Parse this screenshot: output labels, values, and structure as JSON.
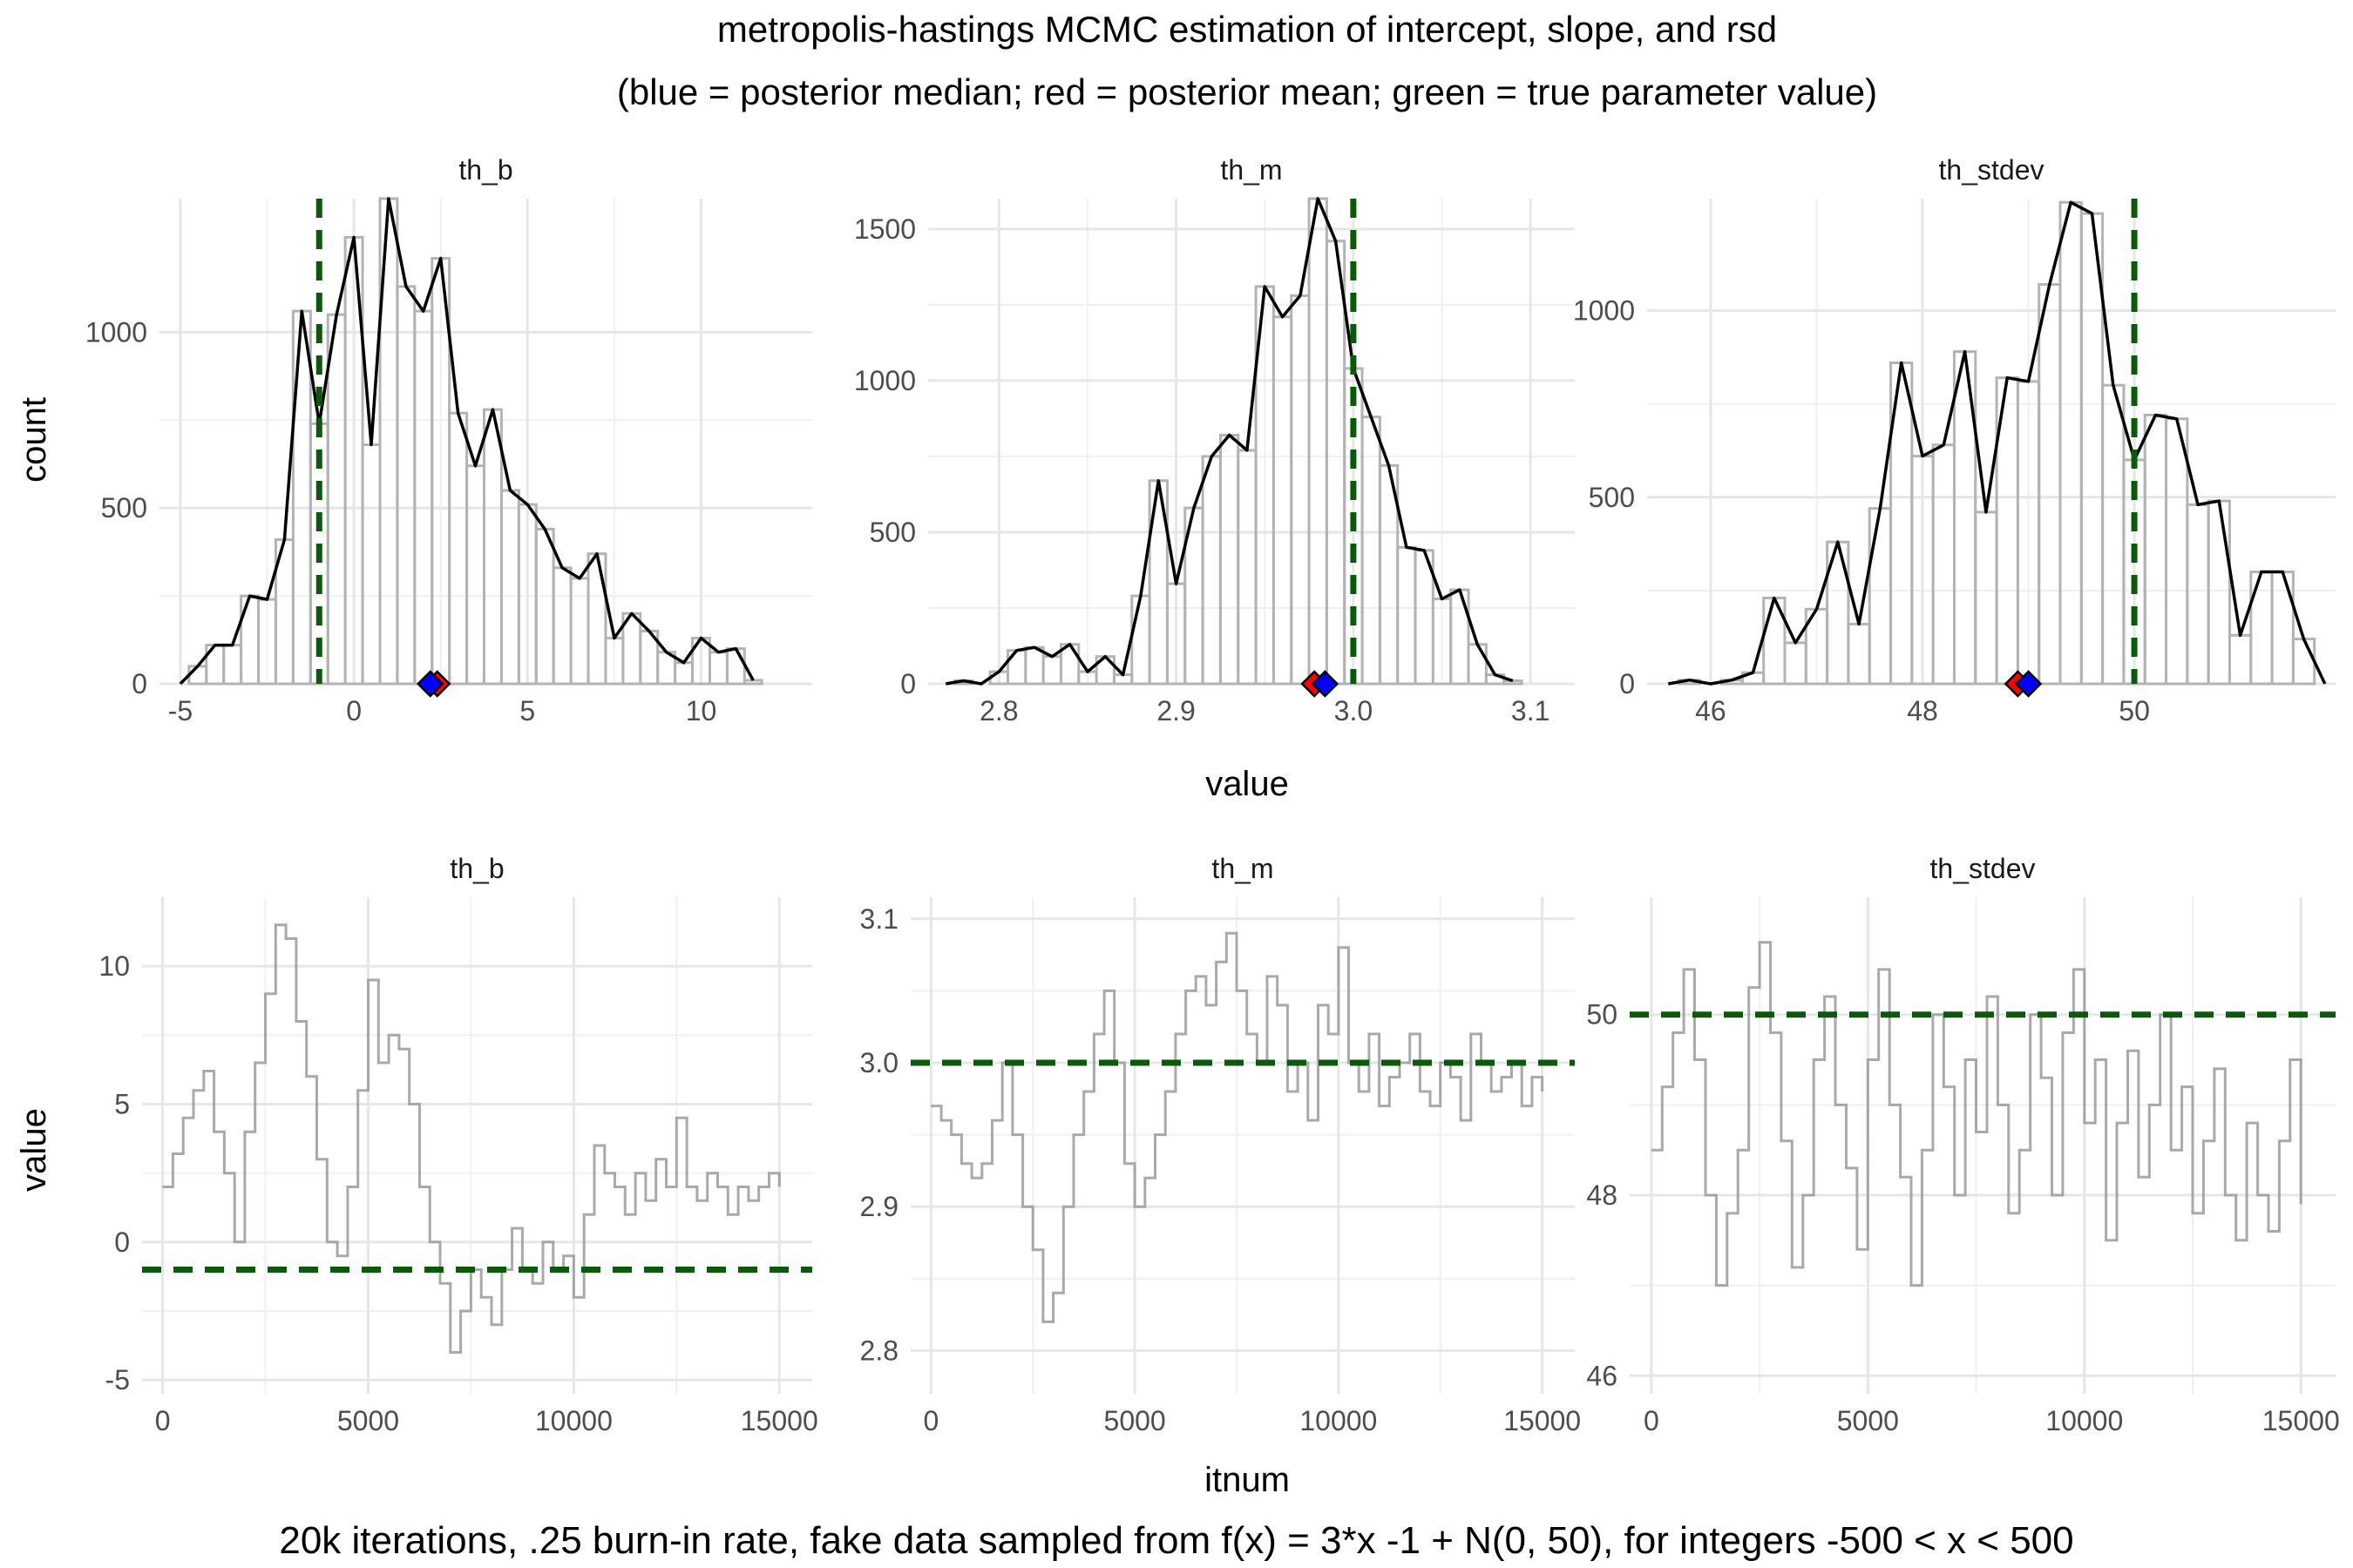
{
  "figure": {
    "title": "metropolis-hastings MCMC estimation of intercept, slope, and rsd",
    "subtitle": "(blue = posterior median; red = posterior mean; green = true parameter value)",
    "caption": "20k iterations, .25 burn-in rate, fake data sampled from f(x) = 3*x -1 + N(0, 50), for integers -500 < x < 500",
    "hist_xlabel": "value",
    "hist_ylabel": "count",
    "trace_xlabel": "itnum",
    "trace_ylabel": "value"
  },
  "colors": {
    "median": "#0000ff",
    "mean": "#ff0000",
    "true_value": "#0b5a0b",
    "bars": "#b3b3b3",
    "density": "#000000",
    "trace": "#9a9a9a",
    "grid": "#e6e6e6"
  },
  "chart_data": [
    {
      "type": "bar",
      "panel": "histogram",
      "title": "th_b",
      "xlim": [
        -5.6,
        13.2
      ],
      "ylim": [
        0,
        1380
      ],
      "xticks": [
        -5,
        0,
        5,
        10
      ],
      "xtick_labels": [
        "-5",
        "0",
        "5",
        "10"
      ],
      "yticks": [
        0,
        500,
        1000
      ],
      "ytick_labels": [
        "0",
        "500",
        "1000"
      ],
      "bin_width": 0.5,
      "bin_start": -5.0,
      "values": [
        0,
        50,
        110,
        110,
        250,
        240,
        410,
        1060,
        740,
        1050,
        1270,
        680,
        1380,
        1130,
        1060,
        1210,
        770,
        620,
        780,
        550,
        510,
        440,
        330,
        300,
        370,
        130,
        200,
        150,
        90,
        60,
        130,
        90,
        100,
        10
      ],
      "true_value": -1,
      "posterior_mean": 2.4,
      "posterior_median": 2.2
    },
    {
      "type": "bar",
      "panel": "histogram",
      "title": "th_m",
      "xlim": [
        2.76,
        3.125
      ],
      "ylim": [
        0,
        1600
      ],
      "xticks": [
        2.8,
        2.9,
        3.0,
        3.1
      ],
      "xtick_labels": [
        "2.8",
        "2.9",
        "3.0",
        "3.1"
      ],
      "yticks": [
        0,
        500,
        1000,
        1500
      ],
      "ytick_labels": [
        "0",
        "500",
        "1000",
        "1500"
      ],
      "bin_width": 0.01,
      "bin_start": 2.77,
      "values": [
        0,
        10,
        0,
        40,
        110,
        120,
        90,
        130,
        40,
        90,
        30,
        290,
        670,
        330,
        580,
        750,
        820,
        770,
        1310,
        1210,
        1280,
        1600,
        1460,
        1040,
        880,
        720,
        450,
        440,
        280,
        310,
        130,
        30,
        10
      ],
      "true_value": 3.0,
      "posterior_mean": 2.978,
      "posterior_median": 2.984
    },
    {
      "type": "bar",
      "panel": "histogram",
      "title": "th_stdev",
      "xlim": [
        45.4,
        51.9
      ],
      "ylim": [
        0,
        1300
      ],
      "xticks": [
        46,
        48,
        50
      ],
      "xtick_labels": [
        "46",
        "48",
        "50"
      ],
      "yticks": [
        0,
        500,
        1000
      ],
      "ytick_labels": [
        "0",
        "500",
        "1000"
      ],
      "bin_width": 0.2,
      "bin_start": 45.6,
      "values": [
        0,
        10,
        0,
        10,
        30,
        230,
        110,
        200,
        380,
        160,
        470,
        860,
        610,
        640,
        890,
        460,
        820,
        810,
        1070,
        1290,
        1260,
        800,
        600,
        720,
        710,
        480,
        490,
        130,
        300,
        300,
        120,
        0
      ],
      "true_value": 50,
      "posterior_mean": 48.9,
      "posterior_median": 49.0
    },
    {
      "type": "line",
      "panel": "trace",
      "title": "th_b",
      "xlim": [
        -500,
        15800
      ],
      "ylim": [
        -5.5,
        12.5
      ],
      "xticks": [
        0,
        5000,
        10000,
        15000
      ],
      "xtick_labels": [
        "0",
        "5000",
        "10000",
        "15000"
      ],
      "yticks": [
        -5,
        0,
        5,
        10
      ],
      "ytick_labels": [
        "-5",
        "0",
        "5",
        "10"
      ],
      "x": [
        0,
        250,
        500,
        750,
        1000,
        1250,
        1500,
        1750,
        2000,
        2250,
        2500,
        2750,
        3000,
        3250,
        3500,
        3750,
        4000,
        4250,
        4500,
        4750,
        5000,
        5250,
        5500,
        5750,
        6000,
        6250,
        6500,
        6750,
        7000,
        7250,
        7500,
        7750,
        8000,
        8250,
        8500,
        8750,
        9000,
        9250,
        9500,
        9750,
        10000,
        10250,
        10500,
        10750,
        11000,
        11250,
        11500,
        11750,
        12000,
        12250,
        12500,
        12750,
        13000,
        13250,
        13500,
        13750,
        14000,
        14250,
        14500,
        14750,
        15000
      ],
      "y": [
        2.0,
        3.2,
        4.5,
        5.5,
        6.2,
        4.0,
        2.5,
        0.0,
        4.0,
        6.5,
        9.0,
        11.5,
        11.0,
        8.0,
        6.0,
        3.0,
        0.0,
        -0.5,
        2.0,
        5.5,
        9.5,
        6.5,
        7.5,
        7.0,
        5.0,
        2.0,
        0.0,
        -1.5,
        -4.0,
        -2.5,
        -1.0,
        -2.0,
        -3.0,
        -1.0,
        0.5,
        -1.0,
        -1.5,
        0.0,
        -1.0,
        -0.5,
        -2.0,
        1.0,
        3.5,
        2.5,
        2.0,
        1.0,
        2.5,
        1.5,
        3.0,
        2.0,
        4.5,
        2.0,
        1.5,
        2.5,
        2.0,
        1.0,
        2.0,
        1.5,
        2.0,
        2.5,
        2.0
      ],
      "true_value": -1
    },
    {
      "type": "line",
      "panel": "trace",
      "title": "th_m",
      "xlim": [
        -500,
        15800
      ],
      "ylim": [
        2.77,
        3.115
      ],
      "xticks": [
        0,
        5000,
        10000,
        15000
      ],
      "xtick_labels": [
        "0",
        "5000",
        "10000",
        "15000"
      ],
      "yticks": [
        2.8,
        2.9,
        3.0,
        3.1
      ],
      "ytick_labels": [
        "2.8",
        "2.9",
        "3.0",
        "3.1"
      ],
      "x": [
        0,
        250,
        500,
        750,
        1000,
        1250,
        1500,
        1750,
        2000,
        2250,
        2500,
        2750,
        3000,
        3250,
        3500,
        3750,
        4000,
        4250,
        4500,
        4750,
        5000,
        5250,
        5500,
        5750,
        6000,
        6250,
        6500,
        6750,
        7000,
        7250,
        7500,
        7750,
        8000,
        8250,
        8500,
        8750,
        9000,
        9250,
        9500,
        9750,
        10000,
        10250,
        10500,
        10750,
        11000,
        11250,
        11500,
        11750,
        12000,
        12250,
        12500,
        12750,
        13000,
        13250,
        13500,
        13750,
        14000,
        14250,
        14500,
        14750,
        15000
      ],
      "y": [
        2.97,
        2.96,
        2.95,
        2.93,
        2.92,
        2.93,
        2.96,
        3.0,
        2.95,
        2.9,
        2.87,
        2.82,
        2.84,
        2.9,
        2.95,
        2.98,
        3.02,
        3.05,
        3.0,
        2.93,
        2.9,
        2.92,
        2.95,
        2.98,
        3.02,
        3.05,
        3.06,
        3.04,
        3.07,
        3.09,
        3.05,
        3.02,
        3.0,
        3.06,
        3.04,
        2.98,
        3.0,
        2.96,
        3.04,
        3.02,
        3.08,
        3.0,
        2.98,
        3.02,
        2.97,
        2.99,
        3.0,
        3.02,
        2.98,
        2.97,
        3.0,
        2.99,
        2.96,
        3.02,
        3.0,
        2.98,
        2.99,
        3.0,
        2.97,
        2.99,
        2.98
      ],
      "true_value": 3.0
    },
    {
      "type": "line",
      "panel": "trace",
      "title": "th_stdev",
      "xlim": [
        -500,
        15800
      ],
      "ylim": [
        45.8,
        51.3
      ],
      "xticks": [
        0,
        5000,
        10000,
        15000
      ],
      "xtick_labels": [
        "0",
        "5000",
        "10000",
        "15000"
      ],
      "yticks": [
        46,
        48,
        50
      ],
      "ytick_labels": [
        "46",
        "48",
        "50"
      ],
      "x": [
        0,
        250,
        500,
        750,
        1000,
        1250,
        1500,
        1750,
        2000,
        2250,
        2500,
        2750,
        3000,
        3250,
        3500,
        3750,
        4000,
        4250,
        4500,
        4750,
        5000,
        5250,
        5500,
        5750,
        6000,
        6250,
        6500,
        6750,
        7000,
        7250,
        7500,
        7750,
        8000,
        8250,
        8500,
        8750,
        9000,
        9250,
        9500,
        9750,
        10000,
        10250,
        10500,
        10750,
        11000,
        11250,
        11500,
        11750,
        12000,
        12250,
        12500,
        12750,
        13000,
        13250,
        13500,
        13750,
        14000,
        14250,
        14500,
        14750,
        15000
      ],
      "y": [
        48.5,
        49.2,
        49.8,
        50.5,
        49.5,
        48.0,
        47.0,
        47.8,
        48.5,
        50.3,
        50.8,
        49.8,
        48.6,
        47.2,
        48.0,
        49.5,
        50.2,
        49.0,
        48.3,
        47.4,
        49.5,
        50.5,
        49.0,
        48.2,
        47.0,
        48.5,
        50.0,
        49.2,
        48.0,
        49.5,
        48.7,
        50.2,
        49.0,
        47.8,
        48.5,
        50.0,
        49.3,
        48.0,
        49.8,
        50.5,
        48.8,
        49.5,
        47.5,
        48.8,
        49.6,
        48.2,
        49.0,
        50.0,
        48.5,
        49.2,
        47.8,
        48.6,
        49.4,
        48.0,
        47.5,
        48.8,
        48.0,
        47.6,
        48.6,
        49.5,
        47.9
      ],
      "true_value": 50
    }
  ]
}
